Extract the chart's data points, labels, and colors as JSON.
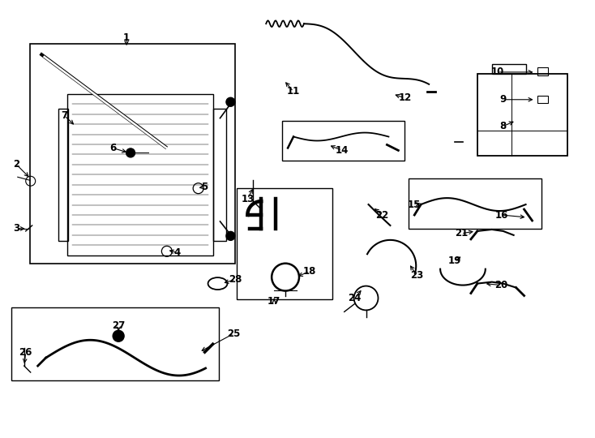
{
  "background_color": "#ffffff",
  "line_color": "#000000",
  "figsize": [
    7.34,
    5.4
  ],
  "dpi": 100
}
